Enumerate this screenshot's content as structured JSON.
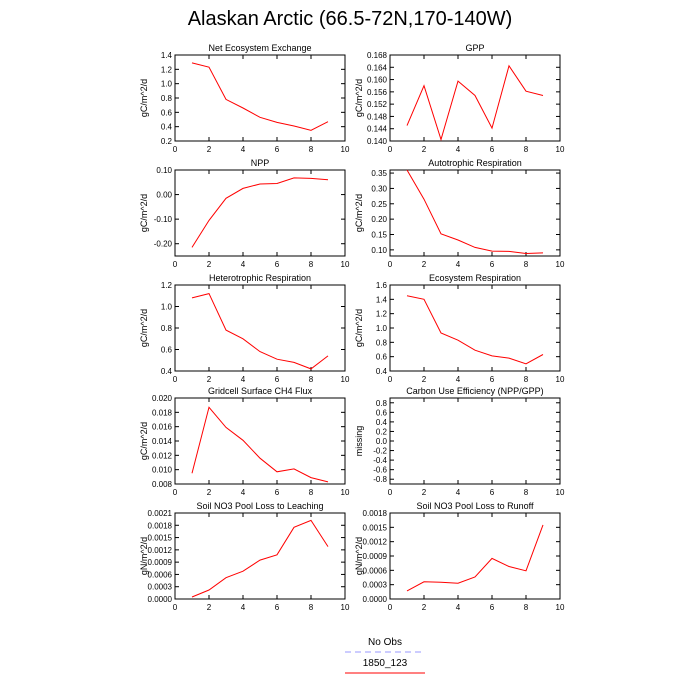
{
  "figure": {
    "title": "Alaskan Arctic (66.5-72N,170-140W)"
  },
  "legend": [
    {
      "label": "No Obs",
      "color": "#9999ff",
      "dash": true
    },
    {
      "label": "1850_123",
      "color": "#ff0000",
      "dash": false
    }
  ],
  "chart_data": [
    {
      "type": "line",
      "title": "Net Ecosystem Exchange",
      "ylabel": "gC/m^2/d",
      "xlim": [
        0,
        10
      ],
      "xticks": [
        0,
        2,
        4,
        6,
        8,
        10
      ],
      "ylim": [
        0.2,
        1.4
      ],
      "yticks": [
        0.2,
        0.4,
        0.6,
        0.8,
        1.0,
        1.2,
        1.4
      ],
      "ytick_labels": [
        "0.2",
        "0.4",
        "0.6",
        "0.8",
        "1.0",
        "1.2",
        "1.4"
      ],
      "series": [
        {
          "name": "1850_123",
          "color": "#ff0000",
          "x": [
            1,
            2,
            3,
            4,
            5,
            6,
            7,
            8,
            9
          ],
          "y": [
            1.29,
            1.23,
            0.78,
            0.66,
            0.53,
            0.46,
            0.41,
            0.35,
            0.47
          ]
        }
      ]
    },
    {
      "type": "line",
      "title": "GPP",
      "ylabel": "gC/m^2/d",
      "xlim": [
        0,
        10
      ],
      "xticks": [
        0,
        2,
        4,
        6,
        8,
        10
      ],
      "ylim": [
        0.14,
        0.168
      ],
      "yticks": [
        0.14,
        0.144,
        0.148,
        0.152,
        0.156,
        0.16,
        0.164,
        0.168
      ],
      "ytick_labels": [
        "0.140",
        "0.144",
        "0.148",
        "0.152",
        "0.156",
        "0.160",
        "0.164",
        "0.168"
      ],
      "series": [
        {
          "name": "1850_123",
          "color": "#ff0000",
          "x": [
            1,
            2,
            3,
            4,
            5,
            6,
            7,
            8,
            9
          ],
          "y": [
            0.145,
            0.158,
            0.1405,
            0.1595,
            0.1548,
            0.1442,
            0.1645,
            0.1562,
            0.1548
          ]
        }
      ]
    },
    {
      "type": "line",
      "title": "NPP",
      "ylabel": "gC/m^2/d",
      "xlim": [
        0,
        10
      ],
      "xticks": [
        0,
        2,
        4,
        6,
        8,
        10
      ],
      "ylim": [
        -0.25,
        0.1
      ],
      "yticks": [
        -0.2,
        -0.1,
        0.0,
        0.1
      ],
      "ytick_labels": [
        "-0.20",
        "-0.10",
        "0.00",
        "0.10"
      ],
      "series": [
        {
          "name": "1850_123",
          "color": "#ff0000",
          "x": [
            1,
            2,
            3,
            4,
            5,
            6,
            7,
            8,
            9
          ],
          "y": [
            -0.215,
            -0.105,
            -0.015,
            0.025,
            0.043,
            0.045,
            0.068,
            0.066,
            0.06
          ]
        }
      ]
    },
    {
      "type": "line",
      "title": "Autotrophic Respiration",
      "ylabel": "gC/m^2/d",
      "xlim": [
        0,
        10
      ],
      "xticks": [
        0,
        2,
        4,
        6,
        8,
        10
      ],
      "ylim": [
        0.08,
        0.36
      ],
      "yticks": [
        0.1,
        0.15,
        0.2,
        0.25,
        0.3,
        0.35
      ],
      "ytick_labels": [
        "0.10",
        "0.15",
        "0.20",
        "0.25",
        "0.30",
        "0.35"
      ],
      "series": [
        {
          "name": "1850_123",
          "color": "#ff0000",
          "x": [
            1,
            2,
            3,
            4,
            5,
            6,
            7,
            8,
            9
          ],
          "y": [
            0.36,
            0.265,
            0.152,
            0.132,
            0.108,
            0.096,
            0.095,
            0.088,
            0.09
          ]
        }
      ]
    },
    {
      "type": "line",
      "title": "Heterotrophic Respiration",
      "ylabel": "gC/m^2/d",
      "xlim": [
        0,
        10
      ],
      "xticks": [
        0,
        2,
        4,
        6,
        8,
        10
      ],
      "ylim": [
        0.4,
        1.2
      ],
      "yticks": [
        0.4,
        0.6,
        0.8,
        1.0,
        1.2
      ],
      "ytick_labels": [
        "0.4",
        "0.6",
        "0.8",
        "1.0",
        "1.2"
      ],
      "series": [
        {
          "name": "1850_123",
          "color": "#ff0000",
          "x": [
            1,
            2,
            3,
            4,
            5,
            6,
            7,
            8,
            9
          ],
          "y": [
            1.08,
            1.12,
            0.78,
            0.7,
            0.58,
            0.51,
            0.48,
            0.42,
            0.54
          ]
        }
      ]
    },
    {
      "type": "line",
      "title": "Ecosystem Respiration",
      "ylabel": "gC/m^2/d",
      "xlim": [
        0,
        10
      ],
      "xticks": [
        0,
        2,
        4,
        6,
        8,
        10
      ],
      "ylim": [
        0.4,
        1.6
      ],
      "yticks": [
        0.4,
        0.6,
        0.8,
        1.0,
        1.2,
        1.4,
        1.6
      ],
      "ytick_labels": [
        "0.4",
        "0.6",
        "0.8",
        "1.0",
        "1.2",
        "1.4",
        "1.6"
      ],
      "series": [
        {
          "name": "1850_123",
          "color": "#ff0000",
          "x": [
            1,
            2,
            3,
            4,
            5,
            6,
            7,
            8,
            9
          ],
          "y": [
            1.45,
            1.4,
            0.93,
            0.83,
            0.69,
            0.61,
            0.58,
            0.5,
            0.63
          ]
        }
      ]
    },
    {
      "type": "line",
      "title": "Gridcell Surface CH4 Flux",
      "ylabel": "gC/m^2/d",
      "xlim": [
        0,
        10
      ],
      "xticks": [
        0,
        2,
        4,
        6,
        8,
        10
      ],
      "ylim": [
        0.008,
        0.02
      ],
      "yticks": [
        0.008,
        0.01,
        0.012,
        0.014,
        0.016,
        0.018,
        0.02
      ],
      "ytick_labels": [
        "0.008",
        "0.010",
        "0.012",
        "0.014",
        "0.016",
        "0.018",
        "0.020"
      ],
      "series": [
        {
          "name": "1850_123",
          "color": "#ff0000",
          "x": [
            1,
            2,
            3,
            4,
            5,
            6,
            7,
            8,
            9
          ],
          "y": [
            0.0095,
            0.0187,
            0.0159,
            0.0141,
            0.0116,
            0.0097,
            0.0101,
            0.0089,
            0.0083
          ]
        }
      ]
    },
    {
      "type": "line",
      "title": "Carbon Use Efficiency (NPP/GPP)",
      "ylabel": "missing",
      "xlim": [
        0,
        10
      ],
      "xticks": [
        0,
        2,
        4,
        6,
        8,
        10
      ],
      "ylim": [
        -0.9,
        0.9
      ],
      "yticks": [
        -0.8,
        -0.6,
        -0.4,
        -0.2,
        0.0,
        0.2,
        0.4,
        0.6,
        0.8
      ],
      "ytick_labels": [
        "-0.8",
        "-0.6",
        "-0.4",
        "-0.2",
        "0.0",
        "0.2",
        "0.4",
        "0.6",
        "0.8"
      ],
      "series": []
    },
    {
      "type": "line",
      "title": "Soil NO3 Pool Loss to Leaching",
      "ylabel": "gN/m^2/d",
      "xlim": [
        0,
        10
      ],
      "xticks": [
        0,
        2,
        4,
        6,
        8,
        10
      ],
      "ylim": [
        0,
        0.0021
      ],
      "yticks": [
        0,
        0.0003,
        0.0006,
        0.0009,
        0.0012,
        0.0015,
        0.0018,
        0.0021
      ],
      "ytick_labels": [
        "0.0000",
        "0.0003",
        "0.0006",
        "0.0009",
        "0.0012",
        "0.0015",
        "0.0018",
        "0.0021"
      ],
      "series": [
        {
          "name": "1850_123",
          "color": "#ff0000",
          "x": [
            1,
            2,
            3,
            4,
            5,
            6,
            7,
            8,
            9
          ],
          "y": [
            5e-05,
            0.00022,
            0.00052,
            0.00068,
            0.00095,
            0.00108,
            0.00175,
            0.00192,
            0.00128
          ]
        }
      ]
    },
    {
      "type": "line",
      "title": "Soil NO3 Pool Loss to Runoff",
      "ylabel": "gN/m^2/d",
      "xlim": [
        0,
        10
      ],
      "xticks": [
        0,
        2,
        4,
        6,
        8,
        10
      ],
      "ylim": [
        0,
        0.0018
      ],
      "yticks": [
        0,
        0.0003,
        0.0006,
        0.0009,
        0.0012,
        0.0015,
        0.0018
      ],
      "ytick_labels": [
        "0.0000",
        "0.0003",
        "0.0006",
        "0.0009",
        "0.0012",
        "0.0015",
        "0.0018"
      ],
      "series": [
        {
          "name": "1850_123",
          "color": "#ff0000",
          "x": [
            1,
            2,
            3,
            4,
            5,
            6,
            7,
            8,
            9
          ],
          "y": [
            0.00017,
            0.00036,
            0.00035,
            0.00033,
            0.00046,
            0.00085,
            0.00068,
            0.00059,
            0.00155
          ]
        }
      ]
    }
  ]
}
